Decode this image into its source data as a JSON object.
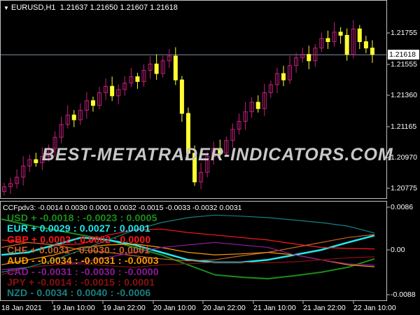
{
  "header": {
    "symbol_title": "EURUSD,H1",
    "ohlc": "1.21637 1.21650 1.21607 1.21618",
    "dropdown_icon": "triangle-down-icon"
  },
  "price_axis": {
    "ticks": [
      "1.21755",
      "1.21555",
      "1.21360",
      "1.21165",
      "1.20970",
      "1.20775"
    ],
    "current_price": "1.21618"
  },
  "watermark": "BEST-METATRADER-INDICATORS.COM",
  "indicator": {
    "title": "CCFpdv3: -0.0014 0.0030 0.0001 0.0032 -0.0015 -0.0033 -0.0032 0.0031",
    "axis": [
      "0.0086",
      "0.00",
      "-0.0088"
    ],
    "rows": [
      {
        "text": "USD +  -0.0018 : -0.0023 : 0.0005",
        "color": "#1a8f1a"
      },
      {
        "text": "EUR +  0.0029 : 0.0027 : 0.0001",
        "color": "#22e8f0"
      },
      {
        "text": "GBP +  0.0002 : 0.0002 : 0.0000",
        "color": "#ff1a1a"
      },
      {
        "text": "CHF +  0.0031 : 0.0030 : 0.0001",
        "color": "#c8642a"
      },
      {
        "text": "AUD -  -0.0034 : -0.0031 : -0.0003",
        "color": "#ff9a00"
      },
      {
        "text": "CAD -  -0.0031 : -0.0030 : -0.0000",
        "color": "#8b1a9a"
      },
      {
        "text": "JPY +  -0.0014 : -0.0015 : 0.0001",
        "color": "#8b1010"
      },
      {
        "text": "NZD -  0.0034 : 0.0040 : -0.0006",
        "color": "#178080"
      }
    ]
  },
  "time_axis": [
    "18 Jan 2021",
    "19 Jan 10:00",
    "19 Jan 22:00",
    "20 Jan 10:00",
    "20 Jan 22:00",
    "21 Jan 10:00",
    "21 Jan 22:00",
    "22 Jan 10:00"
  ],
  "colors": {
    "bull": "#ffff33",
    "bear": "#c0207a",
    "current_line": "#8090a0"
  },
  "chart_data": {
    "type": "candlestick",
    "closes": [
      1.2079,
      1.2081,
      1.2085,
      1.2092,
      1.2096,
      1.2094,
      1.2098,
      1.2103,
      1.211,
      1.2118,
      1.2124,
      1.2121,
      1.2127,
      1.2133,
      1.213,
      1.2138,
      1.2142,
      1.2136,
      1.214,
      1.2144,
      1.2148,
      1.2145,
      1.2152,
      1.2156,
      1.215,
      1.2158,
      1.2161,
      1.2146,
      1.2125,
      1.21,
      1.2082,
      1.2088,
      1.2098,
      1.2103,
      1.21,
      1.2108,
      1.2115,
      1.212,
      1.2126,
      1.2132,
      1.2128,
      1.2138,
      1.2143,
      1.215,
      1.2146,
      1.2155,
      1.216,
      1.2162,
      1.2158,
      1.2166,
      1.2172,
      1.217,
      1.2176,
      1.2174,
      1.2162,
      1.2178,
      1.217,
      1.2166,
      1.2162
    ],
    "indicator_series": [
      {
        "name": "USD",
        "values": [
          0.0062,
          0.005,
          0.004,
          0.003,
          0.002,
          0.0005,
          -0.001,
          -0.003,
          -0.005,
          -0.0055,
          -0.0058,
          -0.0052,
          -0.0045,
          -0.0035,
          -0.0018
        ]
      },
      {
        "name": "EUR",
        "values": [
          -0.001,
          -0.0005,
          0.001,
          0.0025,
          0.002,
          0.001,
          -0.0005,
          -0.002,
          -0.0025,
          -0.0025,
          -0.002,
          -0.001,
          0.0,
          0.0015,
          0.0029
        ]
      },
      {
        "name": "GBP",
        "values": [
          0.002,
          0.0015,
          0.001,
          0.0012,
          0.003,
          0.004,
          0.0042,
          0.0035,
          0.003,
          0.0025,
          0.002,
          0.0012,
          0.0005,
          0.0003,
          0.0002
        ]
      },
      {
        "name": "CHF",
        "values": [
          0.0005,
          0.0015,
          0.001,
          0.0,
          -0.0005,
          -0.0012,
          -0.0018,
          -0.0022,
          -0.002,
          -0.0012,
          -0.0005,
          0.0005,
          0.0015,
          0.0025,
          0.0031
        ]
      },
      {
        "name": "AUD",
        "values": [
          -0.003,
          -0.002,
          -0.001,
          0.0005,
          0.001,
          0.0012,
          0.0005,
          -0.0005,
          -0.001,
          -0.0008,
          -0.0005,
          -0.001,
          -0.002,
          -0.003,
          -0.0034
        ]
      },
      {
        "name": "CAD",
        "values": [
          -0.004,
          -0.0035,
          -0.003,
          -0.0025,
          -0.0015,
          -0.0005,
          0.0005,
          0.001,
          0.0015,
          0.001,
          0.0005,
          -0.001,
          -0.002,
          -0.0028,
          -0.0031
        ]
      },
      {
        "name": "JPY",
        "values": [
          -0.005,
          -0.0035,
          -0.003,
          -0.0028,
          -0.0032,
          -0.0035,
          -0.003,
          -0.0028,
          -0.0025,
          -0.0025,
          -0.0026,
          -0.0024,
          -0.002,
          -0.0016,
          -0.0014
        ]
      },
      {
        "name": "NZD",
        "values": [
          -0.0045,
          -0.0035,
          -0.002,
          0.0,
          0.002,
          0.004,
          0.0055,
          0.0065,
          0.007,
          0.0068,
          0.0065,
          0.006,
          0.0055,
          0.0048,
          0.0034
        ]
      }
    ]
  }
}
